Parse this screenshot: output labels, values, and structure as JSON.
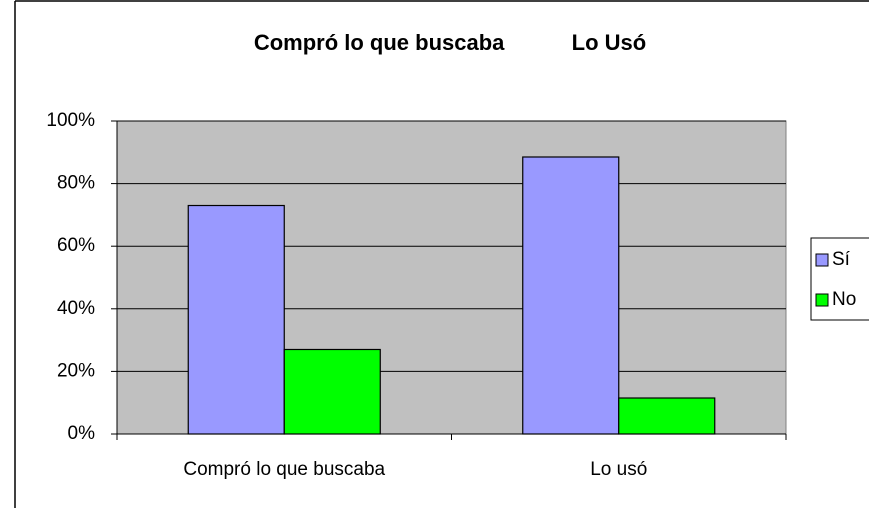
{
  "chart_data": {
    "type": "bar",
    "title": "Compró lo que buscaba           Lo Usó",
    "categories": [
      "Compró lo que buscaba",
      "Lo usó"
    ],
    "series": [
      {
        "name": "Sí",
        "color": "#9999ff",
        "values": [
          73,
          88.5
        ]
      },
      {
        "name": "No",
        "color": "#00ff00",
        "values": [
          27,
          11.5
        ]
      }
    ],
    "ylim": [
      0,
      100
    ],
    "yticks": [
      {
        "value": 0,
        "label": "0%"
      },
      {
        "value": 20,
        "label": "20%"
      },
      {
        "value": 40,
        "label": "40%"
      },
      {
        "value": 60,
        "label": "60%"
      },
      {
        "value": 80,
        "label": "80%"
      },
      {
        "value": 100,
        "label": "100%"
      }
    ],
    "grid": true,
    "legend": "right"
  }
}
